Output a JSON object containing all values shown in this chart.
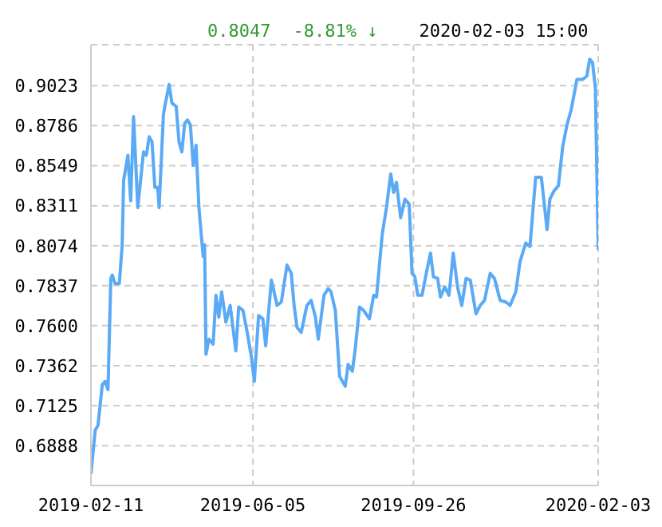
{
  "chart_data": {
    "type": "line",
    "annotations": [
      "0.8047",
      "-8.81% ↓",
      "2020-02-03 15:00"
    ],
    "x": [
      "2019-02-11",
      "2019-02-14",
      "2019-02-16",
      "2019-02-19",
      "2019-02-21",
      "2019-02-23",
      "2019-02-25",
      "2019-02-26",
      "2019-02-28",
      "2019-03-03",
      "2019-03-05",
      "2019-03-06",
      "2019-03-09",
      "2019-03-11",
      "2019-03-13",
      "2019-03-16",
      "2019-03-20",
      "2019-03-22",
      "2019-03-24",
      "2019-03-26",
      "2019-03-28",
      "2019-03-30",
      "2019-03-31",
      "2019-04-03",
      "2019-04-04",
      "2019-04-07",
      "2019-04-09",
      "2019-04-12",
      "2019-04-14",
      "2019-04-16",
      "2019-04-18",
      "2019-04-20",
      "2019-04-22",
      "2019-04-24",
      "2019-04-26",
      "2019-04-28",
      "2019-05-01",
      "2019-05-02",
      "2019-05-03",
      "2019-05-05",
      "2019-05-08",
      "2019-05-10",
      "2019-05-12",
      "2019-05-14",
      "2019-05-17",
      "2019-05-20",
      "2019-05-24",
      "2019-05-26",
      "2019-05-29",
      "2019-06-01",
      "2019-06-04",
      "2019-06-06",
      "2019-06-09",
      "2019-06-12",
      "2019-06-14",
      "2019-06-18",
      "2019-06-22",
      "2019-06-25",
      "2019-06-29",
      "2019-07-02",
      "2019-07-04",
      "2019-07-06",
      "2019-07-09",
      "2019-07-13",
      "2019-07-16",
      "2019-07-19",
      "2019-07-21",
      "2019-07-25",
      "2019-07-28",
      "2019-07-30",
      "2019-08-02",
      "2019-08-05",
      "2019-08-09",
      "2019-08-11",
      "2019-08-14",
      "2019-08-16",
      "2019-08-19",
      "2019-08-22",
      "2019-08-26",
      "2019-08-29",
      "2019-08-31",
      "2019-09-04",
      "2019-09-07",
      "2019-09-10",
      "2019-09-12",
      "2019-09-14",
      "2019-09-17",
      "2019-09-20",
      "2019-09-23",
      "2019-09-25",
      "2019-09-27",
      "2019-09-29",
      "2019-10-02",
      "2019-10-05",
      "2019-10-08",
      "2019-10-10",
      "2019-10-13",
      "2019-10-15",
      "2019-10-18",
      "2019-10-21",
      "2019-10-24",
      "2019-10-27",
      "2019-10-30",
      "2019-11-02",
      "2019-11-05",
      "2019-11-09",
      "2019-11-12",
      "2019-11-15",
      "2019-11-19",
      "2019-11-22",
      "2019-11-26",
      "2019-11-30",
      "2019-12-03",
      "2019-12-07",
      "2019-12-10",
      "2019-12-14",
      "2019-12-17",
      "2019-12-21",
      "2019-12-25",
      "2019-12-29",
      "2019-12-31",
      "2020-01-03",
      "2020-01-06",
      "2020-01-09",
      "2020-01-12",
      "2020-01-15",
      "2020-01-19",
      "2020-01-23",
      "2020-01-26",
      "2020-01-28",
      "2020-01-30",
      "2020-02-01",
      "2020-02-03"
    ],
    "series": [
      {
        "color": "#5aaaf5",
        "values": [
          0.672,
          0.698,
          0.701,
          0.725,
          0.727,
          0.722,
          0.788,
          0.79,
          0.785,
          0.785,
          0.808,
          0.846,
          0.861,
          0.834,
          0.884,
          0.83,
          0.863,
          0.861,
          0.872,
          0.869,
          0.842,
          0.842,
          0.83,
          0.885,
          0.89,
          0.903,
          0.892,
          0.89,
          0.869,
          0.863,
          0.88,
          0.882,
          0.879,
          0.855,
          0.867,
          0.83,
          0.801,
          0.808,
          0.743,
          0.752,
          0.749,
          0.778,
          0.765,
          0.78,
          0.762,
          0.772,
          0.745,
          0.771,
          0.769,
          0.756,
          0.741,
          0.727,
          0.766,
          0.764,
          0.748,
          0.787,
          0.772,
          0.774,
          0.796,
          0.791,
          0.772,
          0.759,
          0.756,
          0.772,
          0.775,
          0.765,
          0.752,
          0.778,
          0.782,
          0.78,
          0.769,
          0.73,
          0.724,
          0.737,
          0.733,
          0.746,
          0.771,
          0.769,
          0.764,
          0.778,
          0.777,
          0.814,
          0.83,
          0.85,
          0.839,
          0.845,
          0.824,
          0.835,
          0.832,
          0.791,
          0.789,
          0.778,
          0.778,
          0.791,
          0.803,
          0.789,
          0.788,
          0.777,
          0.783,
          0.778,
          0.803,
          0.783,
          0.772,
          0.788,
          0.787,
          0.767,
          0.772,
          0.775,
          0.791,
          0.788,
          0.775,
          0.774,
          0.772,
          0.78,
          0.798,
          0.809,
          0.807,
          0.848,
          0.848,
          0.817,
          0.835,
          0.84,
          0.843,
          0.866,
          0.879,
          0.888,
          0.906,
          0.906,
          0.908,
          0.918,
          0.916,
          0.901,
          0.805
        ]
      }
    ],
    "xlim": [
      "2019-02-11",
      "2020-02-03"
    ],
    "xticks": [
      "2019-02-11",
      "2019-06-05",
      "2019-09-26",
      "2020-02-03"
    ],
    "ylim": [
      0.6652,
      0.9266
    ],
    "yticks": [
      0.6888,
      0.7125,
      0.7362,
      {
        "value": 0.76,
        "label": "0.7600"
      },
      0.7837,
      0.8074,
      0.8311,
      0.8549,
      0.8786,
      0.9023
    ],
    "grid": true,
    "marker": "none",
    "line_style": "solid"
  }
}
